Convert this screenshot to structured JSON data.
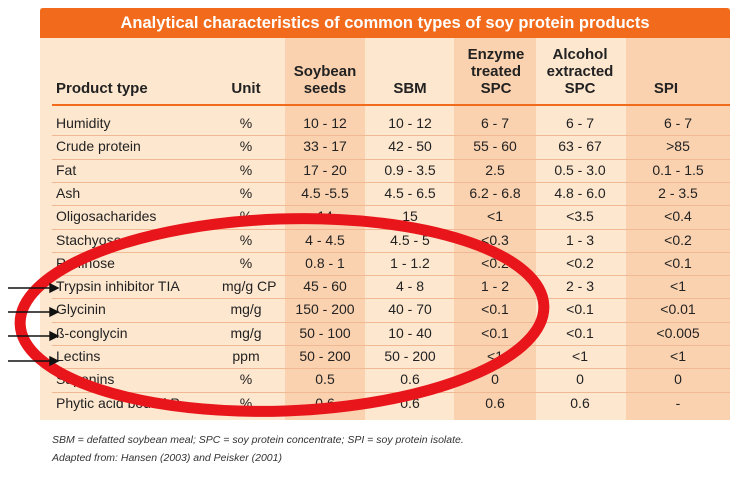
{
  "title": "Analytical characteristics of common types of soy protein products",
  "columns": [
    "Product type",
    "Unit",
    "Soybean seeds",
    "SBM",
    "Enzyme treated SPC",
    "Alcohol extracted SPC",
    "SPI"
  ],
  "rows": [
    [
      "Humidity",
      "%",
      "10 - 12",
      "10 - 12",
      "6 - 7",
      "6 - 7",
      "6 - 7"
    ],
    [
      "Crude protein",
      "%",
      "33 - 17",
      "42 - 50",
      "55 - 60",
      "63 - 67",
      ">85"
    ],
    [
      "Fat",
      "%",
      "17 - 20",
      "0.9 - 3.5",
      "2.5",
      "0.5 - 3.0",
      "0.1 - 1.5"
    ],
    [
      "Ash",
      "%",
      "4.5 -5.5",
      "4.5 - 6.5",
      "6.2 - 6.8",
      "4.8 - 6.0",
      "2 - 3.5"
    ],
    [
      "Oligosacharides",
      "%",
      "14",
      "15",
      "<1",
      "<3.5",
      "<0.4"
    ],
    [
      "Stachyose",
      "%",
      "4 - 4.5",
      "4.5 - 5",
      "<0.3",
      "1 - 3",
      "<0.2"
    ],
    [
      "Raffinose",
      "%",
      "0.8 - 1",
      "1 - 1.2",
      "<0.2",
      "<0.2",
      "<0.1"
    ],
    [
      "Trypsin inhibitor TIA",
      "mg/g CP",
      "45 - 60",
      "4 - 8",
      "1 - 2",
      "2 - 3",
      "<1"
    ],
    [
      "Glycinin",
      "mg/g",
      "150 - 200",
      "40 - 70",
      "<0.1",
      "<0.1",
      "<0.01"
    ],
    [
      "ß-conglycin",
      "mg/g",
      "50 - 100",
      "10 - 40",
      "<0.1",
      "<0.1",
      "<0.005"
    ],
    [
      "Lectins",
      "ppm",
      "50 - 200",
      "50 - 200",
      "<1",
      "<1",
      "<1"
    ],
    [
      "Saponins",
      "%",
      "0.5",
      "0.6",
      "0",
      "0",
      "0"
    ],
    [
      "Phytic acid bound P",
      "%",
      "0.6",
      "0.6",
      "0.6",
      "0.6",
      "-"
    ]
  ],
  "footnotes": [
    "SBM = defatted soybean meal; SPC = soy protein concentrate; SPI = soy protein isolate.",
    "Adapted from: Hansen (2003) and Peisker (2001)"
  ],
  "colors": {
    "title_bar": "#f26a1b",
    "panel": "#fde7cf",
    "band": "#fbd2b0",
    "ellipse": "#e8161b"
  }
}
